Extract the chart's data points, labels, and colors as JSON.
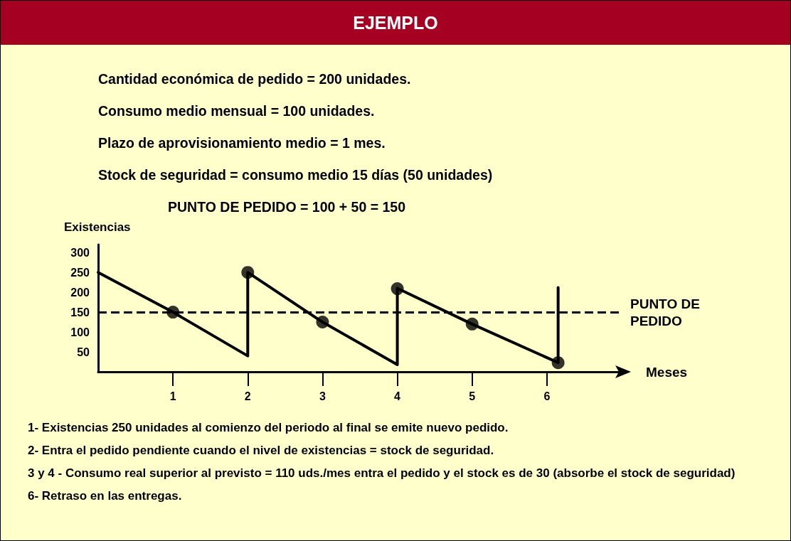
{
  "chart_data": {
    "type": "line",
    "title": "EJEMPLO",
    "annotations": [
      "Cantidad económica de pedido = 200 unidades.",
      "Consumo medio mensual = 100 unidades.",
      "Plazo de aprovisionamiento medio = 1 mes.",
      "Stock de seguridad = consumo medio 15 días (50 unidades)",
      "PUNTO DE PEDIDO = 100 + 50 = 150",
      "1- Existencias 250 unidades al comienzo del periodo al final se emite nuevo pedido.",
      "2- Entra el pedido pendiente cuando el nivel de existencias = stock de seguridad.",
      "3 y 4 - Consumo real superior al previsto = 110 uds./mes entra el pedido y el stock es de 30 (absorbe el stock de seguridad)",
      "6- Retraso en las entregas."
    ],
    "xlabel": "Meses",
    "ylabel": "Existencias",
    "xlim": [
      0,
      7
    ],
    "xticks": [
      1,
      2,
      3,
      4,
      5,
      6
    ],
    "ylim": [
      0,
      320
    ],
    "yticks": [
      50,
      100,
      150,
      200,
      250,
      300
    ],
    "grid": false,
    "series": [
      {
        "color": "#000000",
        "marker": "none",
        "line_style": "solid",
        "x": [
          0,
          1,
          2,
          2,
          3,
          4,
          4,
          5,
          6.15,
          6.15
        ],
        "values": [
          250,
          150,
          40,
          250,
          125,
          18,
          210,
          120,
          23,
          212
        ]
      },
      {
        "type": "scatter",
        "color": "#000000",
        "marker": "circle",
        "x": [
          1,
          2,
          3,
          4,
          5,
          6.15
        ],
        "values": [
          150,
          250,
          125,
          209,
          120,
          23
        ]
      }
    ],
    "ref_lines": [
      {
        "axis": "y",
        "value": 150,
        "label": "PUNTO DE PEDIDO",
        "color": "#000000",
        "line_style": "dashed"
      }
    ]
  }
}
